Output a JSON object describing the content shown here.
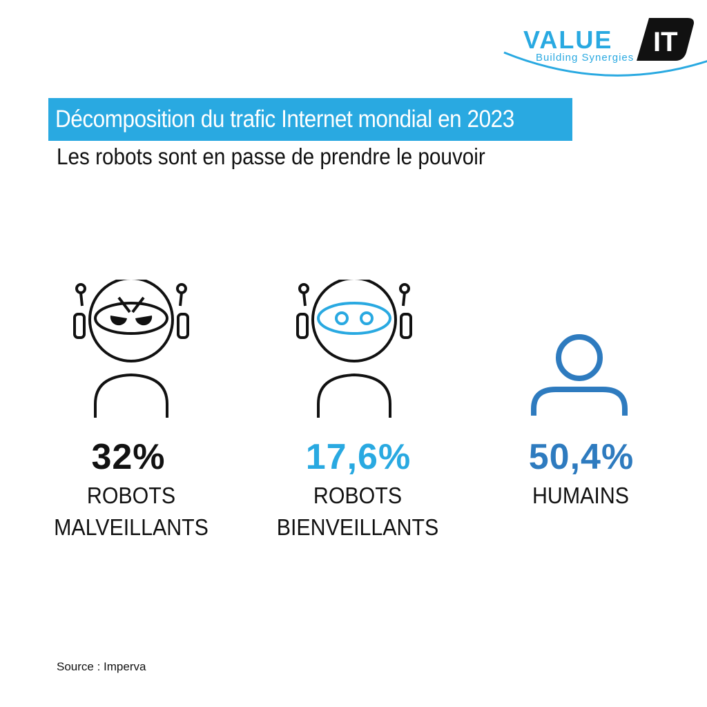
{
  "brand": {
    "name_part1": "VALUE",
    "name_part2": "IT",
    "tagline": "Building Synergies",
    "color_primary": "#29a9e1",
    "color_dark": "#111111"
  },
  "title": "Décomposition du trafic Internet mondial en 2023",
  "subtitle": "Les robots sont en passe de prendre le pouvoir",
  "stats": [
    {
      "value": "32%",
      "line1": "ROBOTS",
      "line2": "MALVEILLANTS",
      "icon": "malicious-robot-icon",
      "color": "#111111"
    },
    {
      "value": "17,6%",
      "line1": "ROBOTS",
      "line2": "BIENVEILLANTS",
      "icon": "benevolent-robot-icon",
      "color": "#29a9e1"
    },
    {
      "value": "50,4%",
      "line1": "HUMAINS",
      "line2": "",
      "icon": "human-user-icon",
      "color": "#2e7bbf"
    }
  ],
  "source": "Source : Imperva"
}
